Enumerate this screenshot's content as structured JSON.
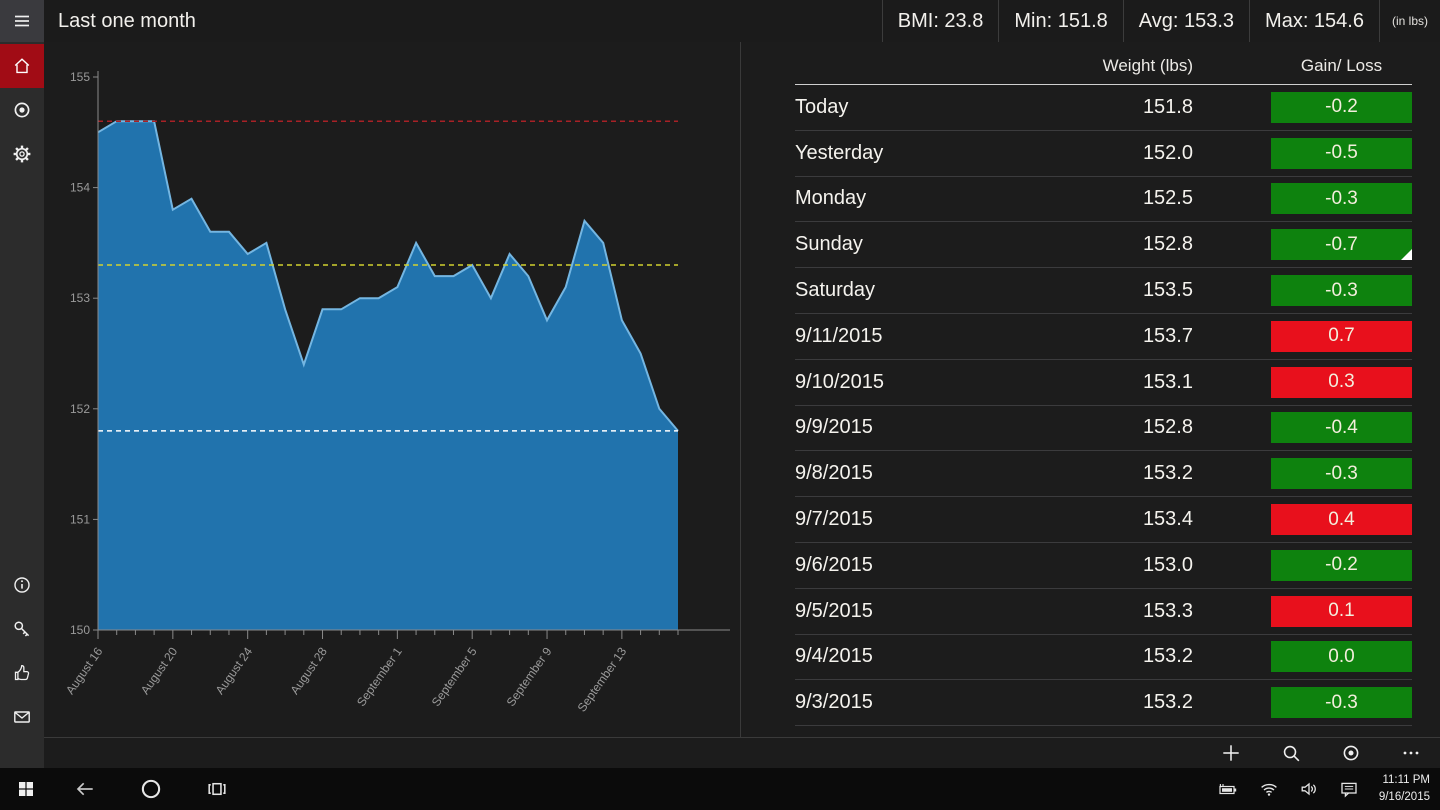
{
  "header": {
    "title": "Last one month",
    "stats": [
      {
        "label": "BMI",
        "value": "23.8"
      },
      {
        "label": "Min",
        "value": "151.8"
      },
      {
        "label": "Avg",
        "value": "153.3"
      },
      {
        "label": "Max",
        "value": "154.6"
      }
    ],
    "unit": "(in lbs)"
  },
  "chart_data": {
    "type": "area",
    "title": "Weight trend - last one month",
    "dates": [
      "8/16",
      "8/17",
      "8/18",
      "8/19",
      "8/20",
      "8/21",
      "8/22",
      "8/23",
      "8/24",
      "8/25",
      "8/26",
      "8/27",
      "8/28",
      "8/29",
      "8/30",
      "8/31",
      "9/1",
      "9/2",
      "9/3",
      "9/4",
      "9/5",
      "9/6",
      "9/7",
      "9/8",
      "9/9",
      "9/10",
      "9/11",
      "9/12",
      "9/13",
      "9/14",
      "9/15",
      "9/16"
    ],
    "values": [
      154.5,
      154.6,
      154.6,
      154.6,
      153.8,
      153.9,
      153.6,
      153.6,
      153.4,
      153.5,
      152.9,
      152.4,
      152.9,
      152.9,
      153.0,
      153.0,
      153.1,
      153.5,
      153.2,
      153.2,
      153.3,
      153.0,
      153.4,
      153.2,
      152.8,
      153.1,
      153.7,
      153.5,
      152.8,
      152.5,
      152.0,
      151.8
    ],
    "x_tick_labels": [
      "August 16",
      "August 20",
      "August 24",
      "August 28",
      "September 1",
      "September 5",
      "September 9",
      "September 13"
    ],
    "yticks": [
      150,
      151,
      152,
      153,
      154,
      155
    ],
    "ylim": [
      150,
      155
    ],
    "ylabel": "",
    "xlabel": "",
    "grid": false,
    "reference_lines": [
      {
        "name": "max",
        "value": 154.6,
        "color": "#a82126",
        "style": "dashed"
      },
      {
        "name": "avg",
        "value": 153.3,
        "color": "#d2d22e",
        "style": "dashed"
      },
      {
        "name": "min",
        "value": 151.8,
        "color": "#ffffff",
        "style": "dashed"
      }
    ],
    "area_color": "#2173ad",
    "edge_color": "#74b6e2"
  },
  "table": {
    "col_weight": "Weight (lbs)",
    "col_gain_loss": "Gain/ Loss",
    "rows": [
      {
        "day": "Today",
        "weight": "151.8",
        "change": "-0.2",
        "status": "loss"
      },
      {
        "day": "Yesterday",
        "weight": "152.0",
        "change": "-0.5",
        "status": "loss"
      },
      {
        "day": "Monday",
        "weight": "152.5",
        "change": "-0.3",
        "status": "loss"
      },
      {
        "day": "Sunday",
        "weight": "152.8",
        "change": "-0.7",
        "status": "loss",
        "note_corner": true
      },
      {
        "day": "Saturday",
        "weight": "153.5",
        "change": "-0.3",
        "status": "loss"
      },
      {
        "day": "9/11/2015",
        "weight": "153.7",
        "change": "0.7",
        "status": "gain"
      },
      {
        "day": "9/10/2015",
        "weight": "153.1",
        "change": "0.3",
        "status": "gain"
      },
      {
        "day": "9/9/2015",
        "weight": "152.8",
        "change": "-0.4",
        "status": "loss"
      },
      {
        "day": "9/8/2015",
        "weight": "153.2",
        "change": "-0.3",
        "status": "loss"
      },
      {
        "day": "9/7/2015",
        "weight": "153.4",
        "change": "0.4",
        "status": "gain"
      },
      {
        "day": "9/6/2015",
        "weight": "153.0",
        "change": "-0.2",
        "status": "loss"
      },
      {
        "day": "9/5/2015",
        "weight": "153.3",
        "change": "0.1",
        "status": "gain"
      },
      {
        "day": "9/4/2015",
        "weight": "153.2",
        "change": "0.0",
        "status": "loss"
      },
      {
        "day": "9/3/2015",
        "weight": "153.2",
        "change": "-0.3",
        "status": "loss"
      }
    ]
  },
  "sidebar": {
    "top_icons": [
      "home",
      "record",
      "settings"
    ],
    "bottom_icons": [
      "info",
      "key",
      "thumbs-up",
      "mail"
    ],
    "selected": "home",
    "accent": "#a10c15"
  },
  "command_bar": {
    "icons": [
      "add",
      "search",
      "record",
      "more"
    ]
  },
  "taskbar": {
    "left_icons": [
      "windows-start",
      "back",
      "cortana",
      "task-view"
    ],
    "tray_icons": [
      "battery",
      "wifi",
      "volume",
      "action-center"
    ],
    "time": "11:11 PM",
    "date": "9/16/2015"
  },
  "colors": {
    "badge_green": "#0e820e",
    "badge_red": "#e8101c",
    "chart_blue": "#2173ad",
    "accent_red": "#a10c15"
  }
}
